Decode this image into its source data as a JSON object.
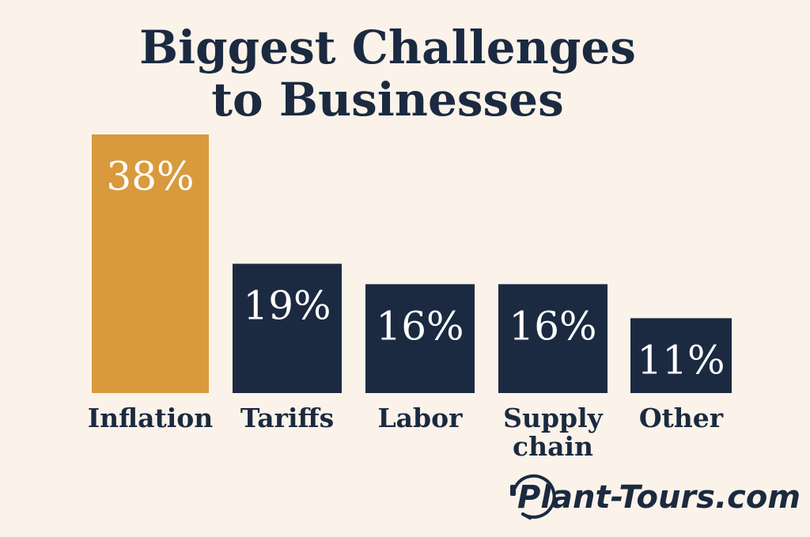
{
  "chart_data": {
    "type": "bar",
    "title_lines": [
      "Biggest Challenges",
      "to Businesses"
    ],
    "categories": [
      [
        "Inflation"
      ],
      [
        "Tariffs"
      ],
      [
        "Labor"
      ],
      [
        "Supply",
        "chain"
      ],
      [
        "Other"
      ]
    ],
    "values": [
      38,
      19,
      16,
      16,
      11
    ],
    "value_labels": [
      "38%",
      "19%",
      "16%",
      "16%",
      "11%"
    ],
    "unit": "%",
    "ylim": [
      0,
      38
    ],
    "grid": false,
    "legend": "none",
    "colors": {
      "highlight": "#d89a3c",
      "bar": "#1b2a40",
      "label_text": "#ffffff",
      "text": "#1b2a40",
      "background": "#fbf3ea"
    }
  },
  "watermark": {
    "text": "Plant-Tours.com",
    "icon": "headset-icon"
  }
}
